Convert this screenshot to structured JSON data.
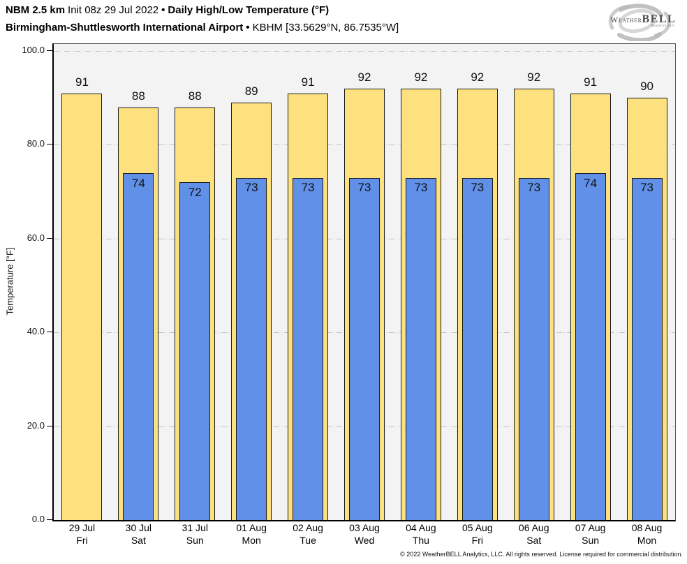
{
  "header": {
    "model": "NBM 2.5 km",
    "init": "Init 08z 29 Jul 2022",
    "sep": "•",
    "product": "Daily High/Low Temperature (°F)",
    "station": "Birmingham-Shuttlesworth International Airport",
    "station_id": "KBHM [33.5629°N, 86.7535°W]"
  },
  "logo": {
    "brand_weather": "Weather",
    "brand_bell": "BELL",
    "brand_sub": "Analytics LLC"
  },
  "chart_data": {
    "type": "bar",
    "title": "Daily High/Low Temperature (°F)",
    "subtitle": "Birmingham-Shuttlesworth International Airport • KBHM",
    "xlabel": "",
    "ylabel": "Temperature [°F]",
    "ylim": [
      0,
      101.5
    ],
    "yticks": [
      0,
      20,
      40,
      60,
      80,
      100
    ],
    "ytick_labels": [
      "0.0",
      "20.0",
      "40.0",
      "60.0",
      "80.0",
      "100.0"
    ],
    "grid": "horizontal-dash-dot",
    "legend_position": "none",
    "plot_bg": "#f3f3f3",
    "categories": [
      {
        "date": "29 Jul",
        "day": "Fri"
      },
      {
        "date": "30 Jul",
        "day": "Sat"
      },
      {
        "date": "31 Jul",
        "day": "Sun"
      },
      {
        "date": "01 Aug",
        "day": "Mon"
      },
      {
        "date": "02 Aug",
        "day": "Tue"
      },
      {
        "date": "03 Aug",
        "day": "Wed"
      },
      {
        "date": "04 Aug",
        "day": "Thu"
      },
      {
        "date": "05 Aug",
        "day": "Fri"
      },
      {
        "date": "06 Aug",
        "day": "Sat"
      },
      {
        "date": "07 Aug",
        "day": "Sun"
      },
      {
        "date": "08 Aug",
        "day": "Mon"
      }
    ],
    "series": [
      {
        "name": "Daily High",
        "color": "#fce17e",
        "values": [
          91,
          88,
          88,
          89,
          91,
          92,
          92,
          92,
          92,
          91,
          90
        ]
      },
      {
        "name": "Daily Low",
        "color": "#6090e8",
        "values": [
          null,
          74,
          72,
          73,
          73,
          73,
          73,
          73,
          73,
          74,
          73
        ]
      }
    ]
  },
  "footer": {
    "copyright": "© 2022 WeatherBELL Analytics, LLC. All rights reserved. License required for commercial distribution."
  }
}
